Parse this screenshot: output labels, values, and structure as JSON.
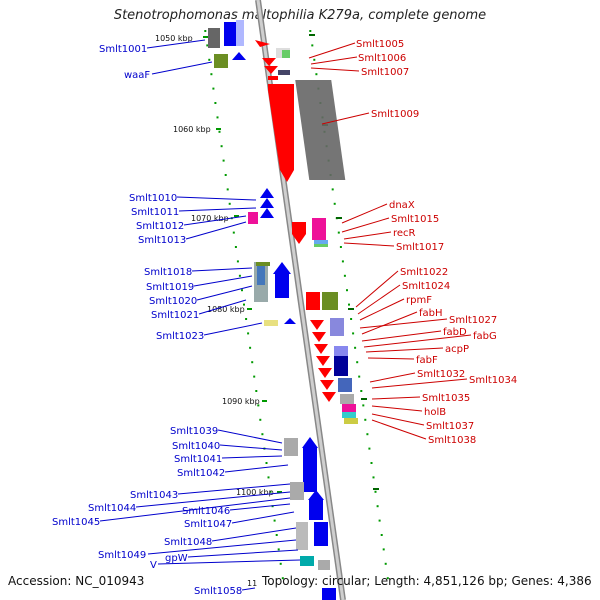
{
  "title": "Stenotrophomonas maltophilia K279a, complete genome",
  "footer": {
    "accession": "Accession: NC_010943",
    "topology": "Topology: circular; Length: 4,851,126 bp; Genes: 4,386"
  },
  "scale_labels": [
    "1050 kbp",
    "1060 kbp",
    "1070 kbp",
    "1080 kbp",
    "1090 kbp",
    "1100 kbp",
    "11"
  ],
  "left_genes": [
    "Smlt1001",
    "waaF",
    "Smlt1010",
    "Smlt1011",
    "Smlt1012",
    "Smlt1013",
    "Smlt1018",
    "Smlt1019",
    "Smlt1020",
    "Smlt1021",
    "Smlt1023",
    "Smlt1039",
    "Smlt1040",
    "Smlt1041",
    "Smlt1042",
    "Smlt1043",
    "Smlt1044",
    "Smlt1045",
    "Smlt1046",
    "Smlt1047",
    "Smlt1048",
    "Smlt1049",
    "gpW",
    "V",
    "Smlt1058"
  ],
  "right_genes": [
    "Smlt1005",
    "Smlt1006",
    "Smlt1007",
    "Smlt1009",
    "dnaX",
    "Smlt1015",
    "recR",
    "Smlt1017",
    "Smlt1022",
    "Smlt1024",
    "rpmF",
    "Smlt1027",
    "fabH",
    "fabD",
    "fabG",
    "acpP",
    "fabF",
    "Smlt1032",
    "Smlt1034",
    "Smlt1035",
    "holB",
    "Smlt1037",
    "Smlt1038"
  ],
  "colors": {
    "forward_gene": "#ff0000",
    "reverse_gene": "#0000ee",
    "left_label": "#0000cc",
    "right_label": "#cc0000",
    "backbone": "#999999",
    "dots": "#009900"
  }
}
